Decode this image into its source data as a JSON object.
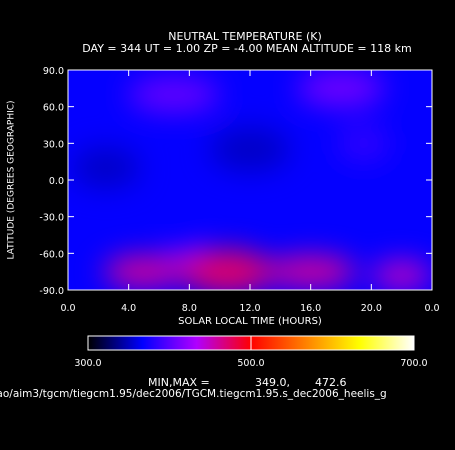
{
  "chart_data": {
    "type": "heatmap",
    "title": "NEUTRAL TEMPERATURE (K)",
    "subtitle": "DAY = 344  UT =  1.00  ZP =  -4.00  MEAN ALTITUDE = 118 km",
    "xlabel": "SOLAR LOCAL TIME (HOURS)",
    "ylabel": "LATITUDE (DEGREES GEOGRAPHIC)",
    "xlim": [
      0,
      24
    ],
    "ylim": [
      -90,
      90
    ],
    "x_tick_labels": [
      "0.0",
      "4.0",
      "8.0",
      "12.0",
      "16.0",
      "20.0",
      "0.0"
    ],
    "y_tick_labels": [
      "90.0",
      "60.0",
      "30.0",
      "0.0",
      "-30.0",
      "-60.0",
      "-90.0"
    ],
    "colorbar": {
      "min": 300.0,
      "max": 700.0,
      "tick_labels": [
        "300.0",
        "500.0",
        "700.0"
      ],
      "colors": [
        "#000000",
        "#0000ff",
        "#b000ff",
        "#ff0000",
        "#ff8000",
        "#ffff00",
        "#ffffff"
      ]
    },
    "features": [
      {
        "x": 2.5,
        "y": 10,
        "value": 352
      },
      {
        "x": 12.0,
        "y": 25,
        "value": 352
      },
      {
        "x": 19.5,
        "y": 30,
        "value": 385
      },
      {
        "x": 7.0,
        "y": 70,
        "value": 405
      },
      {
        "x": 18.0,
        "y": 75,
        "value": 410
      },
      {
        "x": 7.8,
        "y": -60,
        "value": 380
      },
      {
        "x": 10.5,
        "y": -75,
        "value": 472
      },
      {
        "x": 5.0,
        "y": -75,
        "value": 460
      },
      {
        "x": 16.0,
        "y": -75,
        "value": 460
      },
      {
        "x": 22.0,
        "y": -78,
        "value": 450
      }
    ],
    "background_value": 368
  },
  "stats": {
    "label": "MIN,MAX =",
    "min": "349.0,",
    "max": "472.6"
  },
  "source_path": "oao/aim3/tgcm/tiegcm1.95/dec2006/TGCM.tiegcm1.95.s_dec2006_heelis_g"
}
